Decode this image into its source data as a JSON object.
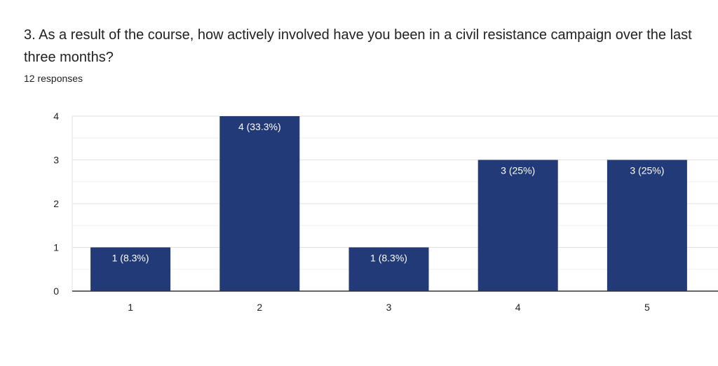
{
  "question": {
    "title": "3. As a result of the course, how actively involved have you been in a civil resistance campaign over the last three months?",
    "responses": "12 responses"
  },
  "colors": {
    "bar": "#233a78",
    "grid_major": "#e0e0e0",
    "grid_minor": "#f0f0f0",
    "axis": "#333333",
    "tick_text": "#222222",
    "label_text": "#ffffff"
  },
  "chart_data": {
    "type": "bar",
    "categories": [
      "1",
      "2",
      "3",
      "4",
      "5"
    ],
    "values": [
      1,
      4,
      1,
      3,
      3
    ],
    "data_labels": [
      "1 (8.3%)",
      "4 (33.3%)",
      "1 (8.3%)",
      "3 (25%)",
      "3 (25%)"
    ],
    "ylim": [
      0,
      4
    ],
    "yticks": [
      0,
      1,
      2,
      3,
      4
    ],
    "grid": true,
    "legend": "none"
  }
}
